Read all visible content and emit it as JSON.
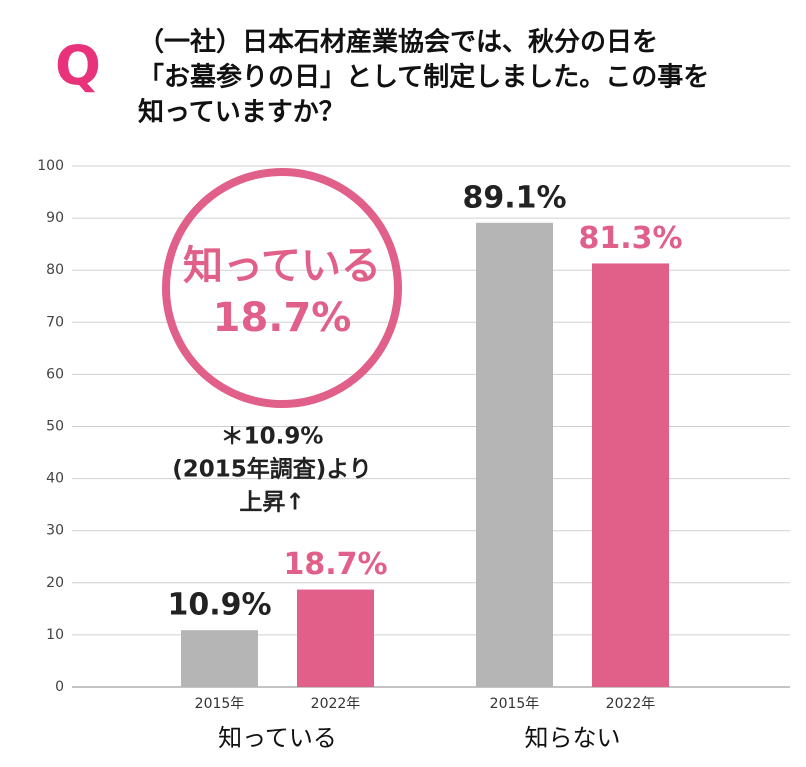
{
  "header": {
    "q_label": "Q",
    "question_lines": [
      "（一社）日本石材産業協会では、秋分の日を",
      "「お墓参りの日」として制定しました。この事を",
      "知っていますか？"
    ]
  },
  "chart_data": {
    "type": "bar",
    "categories": [
      "知っている",
      "知らない"
    ],
    "series": [
      {
        "name": "2015年",
        "color": "#b5b5b5",
        "label_color": "#222222",
        "values": [
          10.9,
          89.1
        ],
        "value_labels": [
          "10.9%",
          "89.1%"
        ]
      },
      {
        "name": "2022年",
        "color": "#e0608a",
        "label_color": "#e0608a",
        "values": [
          18.7,
          81.3
        ],
        "value_labels": [
          "18.7%",
          "81.3%"
        ]
      }
    ],
    "ylim": [
      0,
      100
    ],
    "yticks": [
      0,
      10,
      20,
      30,
      40,
      50,
      60,
      70,
      80,
      90,
      100
    ],
    "grid": true,
    "annotation": {
      "circle_lines": [
        "知っている",
        "18.7%"
      ],
      "note_lines": [
        "＊10.9%",
        "(2015年調査)より",
        "上昇↑"
      ]
    }
  }
}
